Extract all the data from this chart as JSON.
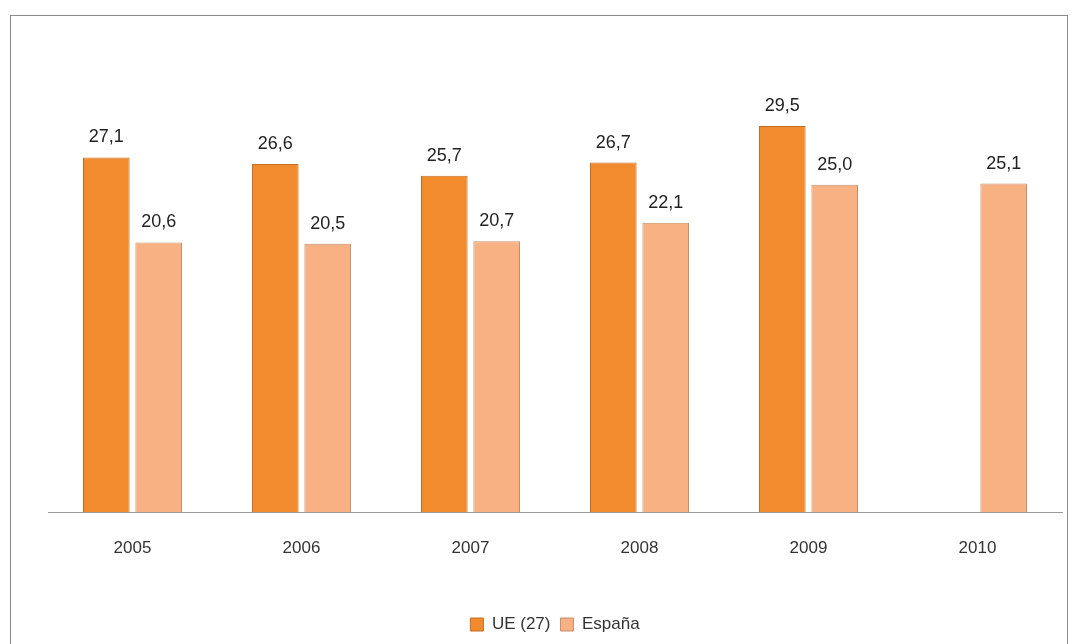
{
  "chart_data": {
    "type": "bar",
    "categories": [
      "2005",
      "2006",
      "2007",
      "2008",
      "2009",
      "2010"
    ],
    "series": [
      {
        "name": "UE (27)",
        "color": "#f28a2e",
        "values": [
          27.1,
          26.6,
          25.7,
          26.7,
          29.5,
          null
        ],
        "value_labels": [
          "27,1",
          "26,6",
          "25,7",
          "26,7",
          "29,5",
          null
        ]
      },
      {
        "name": "España",
        "color": "#f7b183",
        "values": [
          20.6,
          20.5,
          20.7,
          22.1,
          25.0,
          25.1
        ],
        "value_labels": [
          "20,6",
          "20,5",
          "20,7",
          "22,1",
          "25,0",
          "25,1"
        ]
      }
    ],
    "legend": "bottom",
    "tick_labels": "x"
  }
}
